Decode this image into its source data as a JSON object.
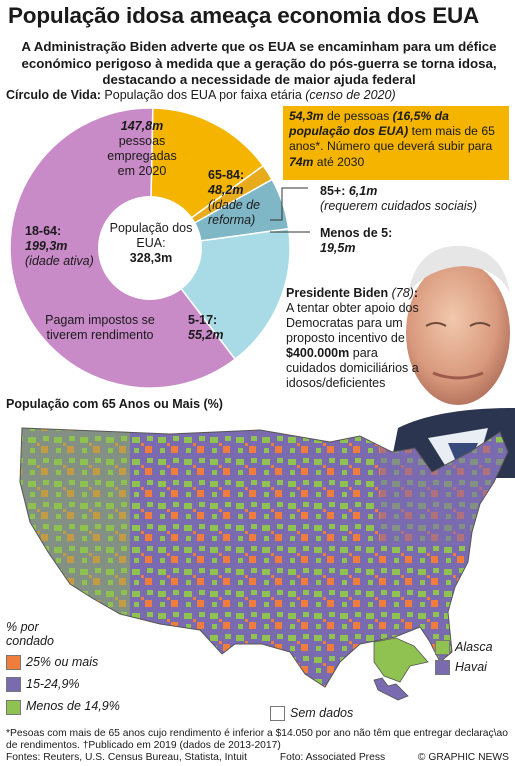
{
  "title": "População idosa ameaça economia dos EUA",
  "subtitle": "A Administração Biden adverte que os EUA se encaminham para um défice económico perigoso à medida que a geração do pós-guerra se torna idosa, destacando a necessidade de maior ajuda federal",
  "section1": {
    "head_bold": "Círculo de Vida:",
    "head_text": "População dos EUA por faixa etária",
    "head_italic": "(censo de 2020)"
  },
  "chart_data": [
    {
      "type": "pie",
      "title": "Círculo de Vida: População dos EUA por faixa etária (censo de 2020)",
      "center_label": "População dos EUA:",
      "center_value": "328,3m",
      "unit": "milhões",
      "segments": [
        {
          "label": "18-64",
          "value": 199.3,
          "value_text": "199,3m",
          "note": "(idade ativa)",
          "color": "#c98ac8"
        },
        {
          "label": "65-84",
          "value": 48.2,
          "value_text": "48,2m",
          "note": "(idade de reforma)",
          "color": "#f4b400"
        },
        {
          "label": "85+",
          "value": 6.1,
          "value_text": "6,1m",
          "note": "(requerem cuidados sociais)",
          "color": "#e8ab1b"
        },
        {
          "label": "Menos de 5",
          "value": 19.5,
          "value_text": "19,5m",
          "note": "",
          "color": "#7fb7c6"
        },
        {
          "label": "5-17",
          "value": 55.2,
          "value_text": "55,2m",
          "note": "",
          "color": "#a8dbe6"
        }
      ],
      "inner_notes": {
        "employed_value": "147,8m",
        "employed_text": "pessoas empregadas em 2020",
        "taxes_text": "Pagam impostos se tiverem rendimento"
      }
    },
    {
      "type": "map",
      "title": "População com 65 Anos ou Mais (%)",
      "legend_title": "% por condado",
      "categories": [
        {
          "label": "25% ou mais",
          "color": "#f07d3c"
        },
        {
          "label": "15-24,9%",
          "color": "#7a6ab0"
        },
        {
          "label": "Menos de 14,9%",
          "color": "#8fc250"
        },
        {
          "label": "Sem dados",
          "color": "#ffffff"
        }
      ],
      "insets": [
        "Alasca",
        "Havai"
      ]
    }
  ],
  "factbox": {
    "line1_bold_italic": "54,3m",
    "line1_text": " de pessoas ",
    "line1_paren": "(16,5% da população dos EUA)",
    "line1_text2": " tem mais de 65 anos*. Número que deverá subir para ",
    "line1_bold": "74m",
    "line1_end": " até 2030"
  },
  "biden": {
    "name": "Presidente Biden",
    "age": "(78)",
    "text": "A tentar obter apoio dos Democratas para um proposto incentivo de",
    "amount": "$400.000m",
    "text2": "para cuidados domiciliários a idosos/deficientes"
  },
  "footnote": "*Pesoas com mais de 65 anos cujo rendimento é inferior a $14.050 por ano não têm que entregar declaraç\\ao de rendimentos. †Publicado em 2019 (dados de 2013-2017)",
  "sources": "Fontes: Reuters, U.S. Census Bureau, Statista, Intuit",
  "photo_credit": "Foto: Associated Press",
  "credit": "© GRAPHIC NEWS"
}
